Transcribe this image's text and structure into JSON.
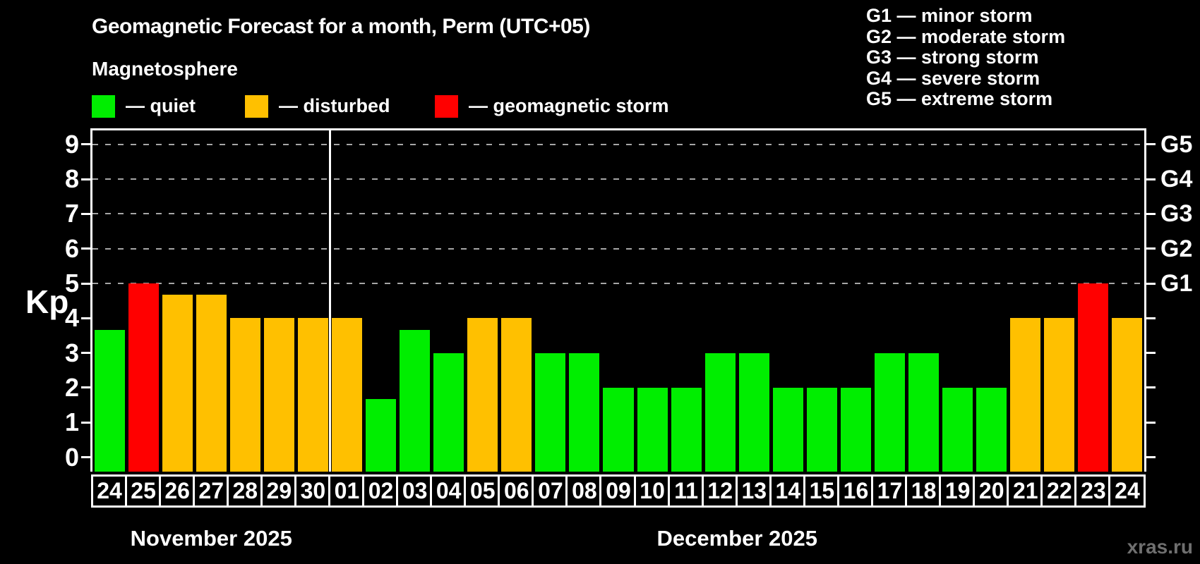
{
  "title": "Geomagnetic Forecast for a month, Perm (UTC+05)",
  "subtitle": "Magnetosphere",
  "legend": {
    "quiet": {
      "label": "— quiet",
      "color": "#00ee00"
    },
    "disturbed": {
      "label": "— disturbed",
      "color": "#ffc000"
    },
    "storm": {
      "label": "— geomagnetic storm",
      "color": "#ff0000"
    }
  },
  "storm_scale_legend": [
    "G1 — minor storm",
    "G2 — moderate storm",
    "G3 — strong storm",
    "G4 — severe storm",
    "G5 — extreme storm"
  ],
  "watermark": "xras.ru",
  "chart_data": {
    "type": "bar",
    "title": "Geomagnetic Forecast for a month, Perm (UTC+05)",
    "ylabel": "Kp",
    "ylim": [
      0,
      9.4
    ],
    "yticks": [
      0,
      1,
      2,
      3,
      4,
      5,
      6,
      7,
      8,
      9
    ],
    "gridlines_at": [
      5,
      6,
      7,
      8,
      9
    ],
    "grid": "dashed horizontal at storm levels only",
    "legend_position": "top",
    "right_axis": [
      {
        "kp": 5,
        "label": "G1"
      },
      {
        "kp": 6,
        "label": "G2"
      },
      {
        "kp": 7,
        "label": "G3"
      },
      {
        "kp": 8,
        "label": "G4"
      },
      {
        "kp": 9,
        "label": "G5"
      }
    ],
    "series_colors": {
      "quiet": "#00ee00",
      "disturbed": "#ffc000",
      "storm": "#ff0000"
    },
    "months": [
      {
        "label": "November 2025",
        "days": 7
      },
      {
        "label": "December 2025",
        "days": 24
      }
    ],
    "bars": [
      {
        "day": "24",
        "kp": 3.67,
        "status": "quiet"
      },
      {
        "day": "25",
        "kp": 5,
        "status": "storm"
      },
      {
        "day": "26",
        "kp": 4.67,
        "status": "disturbed"
      },
      {
        "day": "27",
        "kp": 4.67,
        "status": "disturbed"
      },
      {
        "day": "28",
        "kp": 4,
        "status": "disturbed"
      },
      {
        "day": "29",
        "kp": 4,
        "status": "disturbed"
      },
      {
        "day": "30",
        "kp": 4,
        "status": "disturbed"
      },
      {
        "day": "01",
        "kp": 4,
        "status": "disturbed"
      },
      {
        "day": "02",
        "kp": 1.67,
        "status": "quiet"
      },
      {
        "day": "03",
        "kp": 3.67,
        "status": "quiet"
      },
      {
        "day": "04",
        "kp": 3,
        "status": "quiet"
      },
      {
        "day": "05",
        "kp": 4,
        "status": "disturbed"
      },
      {
        "day": "06",
        "kp": 4,
        "status": "disturbed"
      },
      {
        "day": "07",
        "kp": 3,
        "status": "quiet"
      },
      {
        "day": "08",
        "kp": 3,
        "status": "quiet"
      },
      {
        "day": "09",
        "kp": 2,
        "status": "quiet"
      },
      {
        "day": "10",
        "kp": 2,
        "status": "quiet"
      },
      {
        "day": "11",
        "kp": 2,
        "status": "quiet"
      },
      {
        "day": "12",
        "kp": 3,
        "status": "quiet"
      },
      {
        "day": "13",
        "kp": 3,
        "status": "quiet"
      },
      {
        "day": "14",
        "kp": 2,
        "status": "quiet"
      },
      {
        "day": "15",
        "kp": 2,
        "status": "quiet"
      },
      {
        "day": "16",
        "kp": 2,
        "status": "quiet"
      },
      {
        "day": "17",
        "kp": 3,
        "status": "quiet"
      },
      {
        "day": "18",
        "kp": 3,
        "status": "quiet"
      },
      {
        "day": "19",
        "kp": 2,
        "status": "quiet"
      },
      {
        "day": "20",
        "kp": 2,
        "status": "quiet"
      },
      {
        "day": "21",
        "kp": 4,
        "status": "disturbed"
      },
      {
        "day": "22",
        "kp": 4,
        "status": "disturbed"
      },
      {
        "day": "23",
        "kp": 5,
        "status": "storm"
      },
      {
        "day": "24",
        "kp": 4,
        "status": "disturbed"
      }
    ]
  }
}
